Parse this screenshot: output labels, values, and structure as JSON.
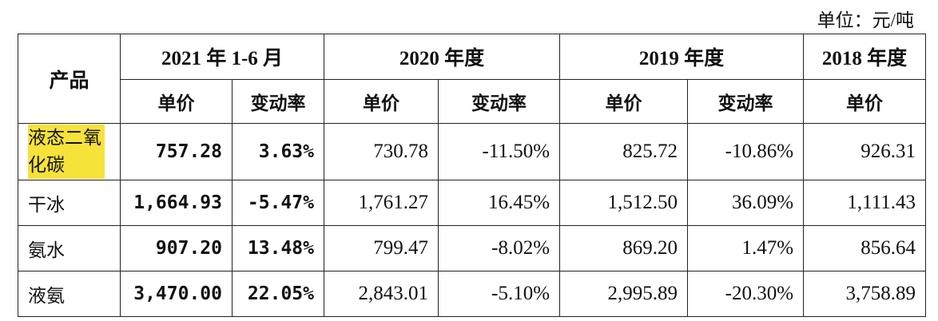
{
  "note": "单位：元/吨",
  "header": {
    "product": "产品",
    "groups": [
      {
        "label": "2021 年 1-6 月",
        "columns": [
          "单价",
          "变动率"
        ]
      },
      {
        "label": "2020 年度",
        "columns": [
          "单价",
          "变动率"
        ]
      },
      {
        "label": "2019 年度",
        "columns": [
          "单价",
          "变动率"
        ]
      },
      {
        "label": "2018 年度",
        "columns": [
          "单价"
        ]
      }
    ]
  },
  "table": {
    "rows": [
      {
        "product": "液态二氧化碳",
        "cells": [
          "757.28",
          "3.63%",
          "730.78",
          "-11.50%",
          "825.72",
          "-10.86%",
          "926.31"
        ]
      },
      {
        "product": "干冰",
        "cells": [
          "1,664.93",
          "-5.47%",
          "1,761.27",
          "16.45%",
          "1,512.50",
          "36.09%",
          "1,111.43"
        ]
      },
      {
        "product": "氨水",
        "cells": [
          "907.20",
          "13.48%",
          "799.47",
          "-8.02%",
          "869.20",
          "1.47%",
          "856.64"
        ]
      },
      {
        "product": "液氨",
        "cells": [
          "3,470.00",
          "22.05%",
          "2,843.01",
          "-5.10%",
          "2,995.89",
          "-20.30%",
          "3,758.89"
        ]
      }
    ]
  }
}
